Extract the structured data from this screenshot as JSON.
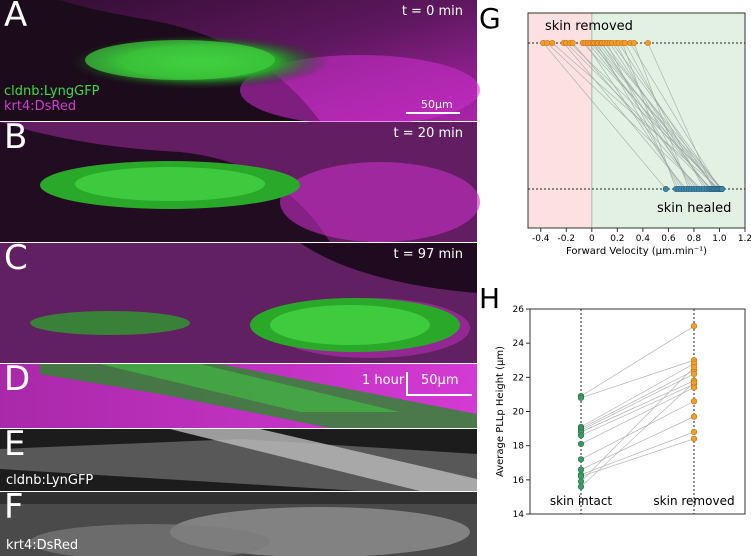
{
  "panels": {
    "A": {
      "letter": "A",
      "time": "t = 0 min",
      "channel1": "cldnb:LyngGFP",
      "channel2": "krt4:DsRed",
      "scalebar": "50μm"
    },
    "B": {
      "letter": "B",
      "time": "t = 20 min"
    },
    "C": {
      "letter": "C",
      "time": "t = 97 min"
    },
    "D": {
      "letter": "D",
      "time_scale": "1 hour",
      "scalebar": "50μm"
    },
    "E": {
      "letter": "E",
      "channel": "cldnb:LynGFP"
    },
    "F": {
      "letter": "F",
      "channel": "krt4:DsRed"
    }
  },
  "colors": {
    "green": "#39d63c",
    "magenta": "#c81ec8",
    "orange": "#f59d2a",
    "blue": "#3d86a8",
    "teal_green": "#3b9b64",
    "red_region": "#fde1e1",
    "green_region": "#e3f1e3"
  },
  "chart_data": [
    {
      "panel_letter": "G",
      "type": "scatter",
      "xlabel": "Forward Velocity (μm.min⁻¹)",
      "xlim": [
        -0.5,
        1.2
      ],
      "xticks": [
        "-0.4",
        "-0.2",
        "0",
        "0.2",
        "0.4",
        "0.6",
        "0.8",
        "1.0",
        "1.2"
      ],
      "xtick_values": [
        -0.4,
        -0.2,
        0,
        0.2,
        0.4,
        0.6,
        0.8,
        1.0,
        1.2
      ],
      "annotations": [
        "skin removed",
        "skin healed"
      ],
      "series": [
        {
          "name": "skin removed",
          "values": [
            -0.38,
            -0.35,
            -0.31,
            -0.22,
            -0.2,
            -0.17,
            -0.15,
            -0.07,
            -0.05,
            -0.03,
            -0.01,
            0.01,
            0.02,
            0.04,
            0.05,
            0.07,
            0.08,
            0.1,
            0.12,
            0.14,
            0.16,
            0.19,
            0.21,
            0.24,
            0.26,
            0.3,
            0.33,
            0.44
          ]
        },
        {
          "name": "skin healed",
          "values": [
            0.58,
            0.66,
            0.68,
            0.7,
            0.72,
            0.74,
            0.76,
            0.78,
            0.8,
            0.82,
            0.84,
            0.86,
            0.88,
            0.9,
            0.92,
            0.93,
            0.94,
            0.95,
            0.96,
            0.97,
            0.98,
            0.99,
            1.0,
            1.0,
            1.01,
            1.02,
            1.02,
            1.02
          ]
        }
      ]
    },
    {
      "panel_letter": "H",
      "type": "scatter",
      "ylabel": "Average PLLp Height (μm)",
      "ylim": [
        14,
        26
      ],
      "yticks": [
        "14",
        "16",
        "18",
        "20",
        "22",
        "24",
        "26"
      ],
      "ytick_values": [
        14,
        16,
        18,
        20,
        22,
        24,
        26
      ],
      "categories": [
        "skin intact",
        "skin removed"
      ],
      "series": [
        {
          "name": "skin intact",
          "values": [
            20.9,
            20.8,
            19.1,
            19.0,
            18.9,
            18.8,
            18.6,
            18.1,
            17.2,
            16.6,
            16.3,
            16.2,
            15.9,
            15.6
          ]
        },
        {
          "name": "skin removed",
          "values": [
            25.0,
            23.0,
            22.8,
            22.4,
            22.2,
            21.8,
            21.6,
            21.4,
            20.6,
            19.7,
            18.8,
            18.4,
            22.6,
            21.7
          ]
        }
      ]
    }
  ]
}
